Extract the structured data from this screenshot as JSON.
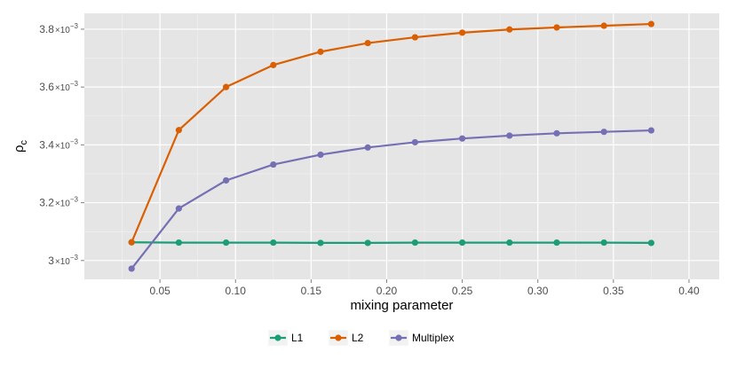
{
  "chart_data": {
    "type": "line",
    "title": "",
    "xlabel": "mixing parameter",
    "ylabel": "ρc",
    "ylabel_main": "ρ",
    "ylabel_sub": "c",
    "xlim": [
      0.0,
      0.42
    ],
    "ylim": [
      2.935,
      3.855
    ],
    "x_ticks": [
      0.05,
      0.1,
      0.15,
      0.2,
      0.25,
      0.3,
      0.35,
      0.4
    ],
    "x_tick_labels": [
      "0.05",
      "0.10",
      "0.15",
      "0.20",
      "0.25",
      "0.30",
      "0.35",
      "0.40"
    ],
    "y_ticks": [
      3.0,
      3.2,
      3.4,
      3.6,
      3.8
    ],
    "y_tick_mantissa": [
      "3",
      "3.2",
      "3.4",
      "3.6",
      "3.8"
    ],
    "y_tick_base": "×10",
    "y_tick_exponent": "−3",
    "y_unit_note": "values in units of 10^-3",
    "grid": true,
    "legend_position": "bottom",
    "x": [
      0.03125,
      0.0625,
      0.09375,
      0.125,
      0.15625,
      0.1875,
      0.21875,
      0.25,
      0.28125,
      0.3125,
      0.34375,
      0.375
    ],
    "series": [
      {
        "name": "L1",
        "color": "#1b9e77",
        "values": [
          3.063,
          3.062,
          3.062,
          3.062,
          3.061,
          3.061,
          3.062,
          3.062,
          3.062,
          3.062,
          3.062,
          3.061
        ]
      },
      {
        "name": "L2",
        "color": "#d95f02",
        "values": [
          3.063,
          3.451,
          3.6,
          3.676,
          3.722,
          3.752,
          3.772,
          3.788,
          3.799,
          3.806,
          3.812,
          3.818
        ]
      },
      {
        "name": "Multiplex",
        "color": "#7570b3",
        "values": [
          2.972,
          3.18,
          3.277,
          3.332,
          3.366,
          3.391,
          3.409,
          3.422,
          3.432,
          3.44,
          3.445,
          3.45
        ]
      }
    ]
  }
}
